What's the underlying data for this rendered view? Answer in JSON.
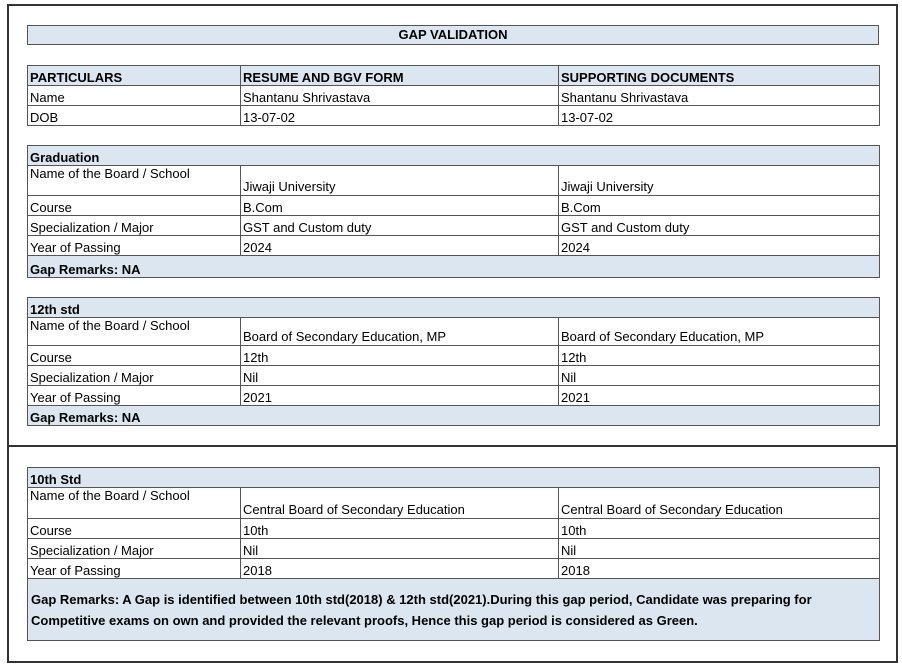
{
  "title": "GAP VALIDATION",
  "header": {
    "columns": [
      "PARTICULARS",
      "RESUME AND BGV FORM",
      "SUPPORTING DOCUMENTS"
    ],
    "rows": [
      [
        "Name",
        "Shantanu Shrivastava",
        "Shantanu Shrivastava"
      ],
      [
        "DOB",
        "13-07-02",
        "13-07-02"
      ]
    ]
  },
  "sections": [
    {
      "title": "Graduation",
      "rows": [
        [
          "Name of the Board / School",
          "Jiwaji University",
          "Jiwaji University"
        ],
        [
          "Course",
          "B.Com",
          "B.Com"
        ],
        [
          "Specialization / Major",
          "GST and Custom duty",
          "GST and Custom duty"
        ],
        [
          "Year of Passing",
          "2024",
          "2024"
        ]
      ],
      "remarks": "Gap Remarks: NA"
    },
    {
      "title": "12th std",
      "rows": [
        [
          "Name of the Board / School",
          "Board of Secondary Education, MP",
          "Board of Secondary Education, MP"
        ],
        [
          "Course",
          "12th",
          "12th"
        ],
        [
          "Specialization / Major",
          "Nil",
          "Nil"
        ],
        [
          "Year of Passing",
          "2021",
          "2021"
        ]
      ],
      "remarks": "Gap Remarks: NA"
    },
    {
      "title": "10th Std",
      "rows": [
        [
          "Name of the Board / School",
          "Central Board of Secondary Education",
          "Central Board of Secondary Education"
        ],
        [
          "Course",
          "10th",
          "10th"
        ],
        [
          "Specialization / Major",
          "Nil",
          "Nil"
        ],
        [
          "Year of Passing",
          "2018",
          "2018"
        ]
      ],
      "remarks": "Gap Remarks: A Gap is identified between 10th std(2018) & 12th std(2021).During this gap period, Candidate was preparing for Competitive exams on own and provided the relevant proofs, Hence this gap period is considered as Green."
    }
  ]
}
